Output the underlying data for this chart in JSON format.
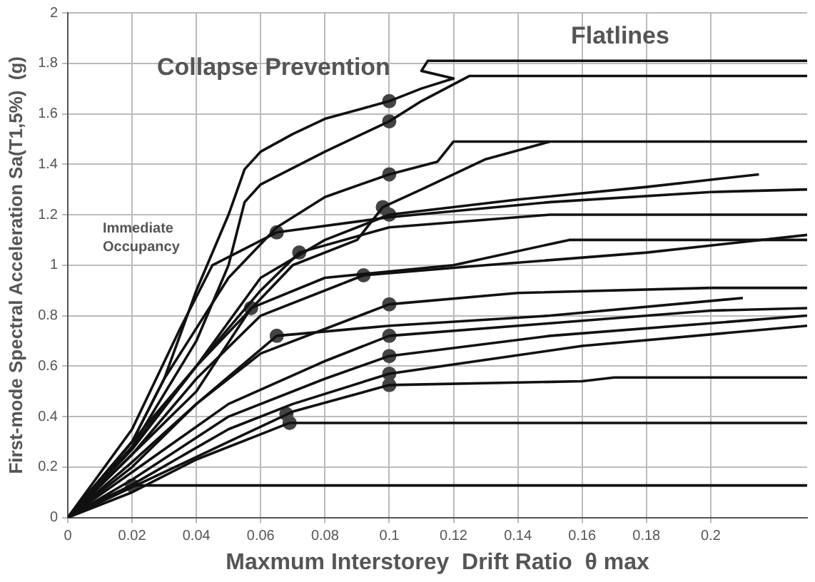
{
  "chart_data": {
    "type": "line",
    "xlabel": "Maxmum Interstorey  Drift Ratio  θ max",
    "ylabel": "First-mode Spectral Acceleration Sa(T1,5%)  (g)",
    "annotations": [
      "Collapse Prevention",
      "Flatlines",
      "Immediate Occupancy"
    ],
    "xlim": [
      0,
      0.23
    ],
    "ylim": [
      0,
      2
    ],
    "xticks": [
      0,
      0.02,
      0.04,
      0.06,
      0.08,
      0.1,
      0.12,
      0.14,
      0.16,
      0.18,
      0.2
    ],
    "yticks": [
      0,
      0.2,
      0.4,
      0.6,
      0.8,
      1,
      1.2,
      1.4,
      1.6,
      1.8,
      2
    ],
    "grid": true,
    "legend": false,
    "line_style": "solid",
    "series": [
      {
        "type": "line",
        "color": "#111111",
        "x": [
          0,
          0.02,
          0.03,
          0.04,
          0.05,
          0.055,
          0.06,
          0.07,
          0.08,
          0.1,
          0.11,
          0.12,
          0.11,
          0.112,
          0.13,
          0.23
        ],
        "values": [
          0,
          0.3,
          0.55,
          0.9,
          1.2,
          1.38,
          1.45,
          1.52,
          1.58,
          1.65,
          1.7,
          1.74,
          1.77,
          1.81,
          1.81,
          1.81
        ]
      },
      {
        "type": "line",
        "color": "#111111",
        "x": [
          0,
          0.02,
          0.04,
          0.05,
          0.055,
          0.06,
          0.08,
          0.1,
          0.11,
          0.125,
          0.23
        ],
        "values": [
          0,
          0.28,
          0.7,
          1.0,
          1.25,
          1.32,
          1.45,
          1.57,
          1.65,
          1.75,
          1.75
        ]
      },
      {
        "type": "line",
        "color": "#111111",
        "x": [
          0,
          0.02,
          0.03,
          0.05,
          0.065,
          0.08,
          0.1,
          0.115,
          0.12,
          0.23
        ],
        "values": [
          0,
          0.3,
          0.55,
          0.95,
          1.15,
          1.27,
          1.36,
          1.41,
          1.49,
          1.49
        ]
      },
      {
        "type": "line",
        "color": "#111111",
        "x": [
          0,
          0.02,
          0.04,
          0.07,
          0.09,
          0.098,
          0.11,
          0.13,
          0.15
        ],
        "values": [
          0,
          0.28,
          0.6,
          1.0,
          1.1,
          1.23,
          1.3,
          1.42,
          1.49
        ]
      },
      {
        "type": "line",
        "color": "#111111",
        "x": [
          0,
          0.02,
          0.04,
          0.06,
          0.08,
          0.1,
          0.14,
          0.18,
          0.215
        ],
        "values": [
          0,
          0.27,
          0.6,
          0.95,
          1.1,
          1.2,
          1.26,
          1.31,
          1.36
        ]
      },
      {
        "type": "line",
        "color": "#111111",
        "x": [
          0,
          0.02,
          0.035,
          0.045,
          0.065,
          0.1,
          0.15,
          0.2,
          0.23
        ],
        "values": [
          0,
          0.35,
          0.75,
          1.0,
          1.13,
          1.19,
          1.25,
          1.29,
          1.3
        ]
      },
      {
        "type": "line",
        "color": "#111111",
        "x": [
          0,
          0.02,
          0.04,
          0.06,
          0.072,
          0.1,
          0.15,
          0.23
        ],
        "values": [
          0,
          0.3,
          0.6,
          0.9,
          1.05,
          1.15,
          1.2,
          1.2
        ]
      },
      {
        "type": "line",
        "color": "#111111",
        "x": [
          0,
          0.02,
          0.04,
          0.06,
          0.092,
          0.13,
          0.18,
          0.23
        ],
        "values": [
          0,
          0.25,
          0.55,
          0.8,
          0.96,
          1.0,
          1.05,
          1.12
        ]
      },
      {
        "type": "line",
        "color": "#111111",
        "x": [
          0,
          0.02,
          0.04,
          0.057,
          0.08,
          0.12,
          0.156,
          0.23
        ],
        "values": [
          0,
          0.25,
          0.5,
          0.83,
          0.95,
          1.0,
          1.1,
          1.1
        ]
      },
      {
        "type": "line",
        "color": "#111111",
        "x": [
          0,
          0.02,
          0.04,
          0.06,
          0.1,
          0.14,
          0.2,
          0.23
        ],
        "values": [
          0,
          0.22,
          0.45,
          0.65,
          0.845,
          0.89,
          0.91,
          0.91
        ]
      },
      {
        "type": "line",
        "color": "#111111",
        "x": [
          0,
          0.02,
          0.04,
          0.065,
          0.1,
          0.15,
          0.21
        ],
        "values": [
          0,
          0.2,
          0.45,
          0.72,
          0.76,
          0.8,
          0.87
        ]
      },
      {
        "type": "line",
        "color": "#111111",
        "x": [
          0,
          0.02,
          0.05,
          0.08,
          0.1,
          0.15,
          0.2,
          0.23
        ],
        "values": [
          0,
          0.18,
          0.45,
          0.62,
          0.72,
          0.77,
          0.82,
          0.83
        ]
      },
      {
        "type": "line",
        "color": "#111111",
        "x": [
          0,
          0.02,
          0.05,
          0.08,
          0.1,
          0.15,
          0.23
        ],
        "values": [
          0,
          0.15,
          0.4,
          0.55,
          0.64,
          0.72,
          0.8
        ]
      },
      {
        "type": "line",
        "color": "#111111",
        "x": [
          0,
          0.02,
          0.05,
          0.07,
          0.1,
          0.16,
          0.23
        ],
        "values": [
          0,
          0.13,
          0.35,
          0.45,
          0.57,
          0.68,
          0.76
        ]
      },
      {
        "type": "line",
        "color": "#111111",
        "x": [
          0,
          0.02,
          0.05,
          0.07,
          0.1,
          0.16,
          0.17,
          0.23
        ],
        "values": [
          0,
          0.12,
          0.3,
          0.42,
          0.525,
          0.54,
          0.555,
          0.555
        ]
      },
      {
        "type": "line",
        "color": "#111111",
        "x": [
          0,
          0.02,
          0.04,
          0.06,
          0.069,
          0.23
        ],
        "values": [
          0,
          0.1,
          0.23,
          0.33,
          0.375,
          0.375
        ]
      },
      {
        "type": "line",
        "color": "#111111",
        "x": [
          0,
          0.01,
          0.02,
          0.23
        ],
        "values": [
          0,
          0.07,
          0.127,
          0.127
        ]
      },
      {
        "type": "scatter",
        "color": "#444444",
        "marker": "circle",
        "x": [
          0.1,
          0.1,
          0.1,
          0.098,
          0.1,
          0.065,
          0.072,
          0.092,
          0.057,
          0.065,
          0.1,
          0.1,
          0.1,
          0.1,
          0.1,
          0.068,
          0.069,
          0.02
        ],
        "values": [
          1.65,
          1.57,
          1.36,
          1.23,
          1.2,
          1.13,
          1.05,
          0.96,
          0.83,
          0.72,
          0.845,
          0.72,
          0.64,
          0.57,
          0.525,
          0.41,
          0.375,
          0.127
        ]
      }
    ]
  }
}
